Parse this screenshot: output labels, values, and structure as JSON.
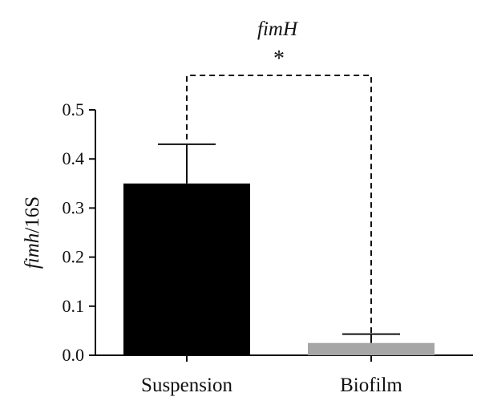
{
  "chart_data": {
    "type": "bar",
    "title": "fimH",
    "ylabel": {
      "italic": "fimh",
      "rest": "/16S"
    },
    "xlabel": "",
    "categories": [
      "Suspension",
      "Biofilm"
    ],
    "values": [
      0.35,
      0.025
    ],
    "errors": [
      0.08,
      0.018
    ],
    "colors": [
      "#000000",
      "#a6a6a6"
    ],
    "ylim": [
      0,
      0.5
    ],
    "yticks": [
      "0.0",
      "0.1",
      "0.2",
      "0.3",
      "0.4",
      "0.5"
    ],
    "grid": false,
    "significance": {
      "between": [
        "Suspension",
        "Biofilm"
      ],
      "label": "*"
    }
  }
}
